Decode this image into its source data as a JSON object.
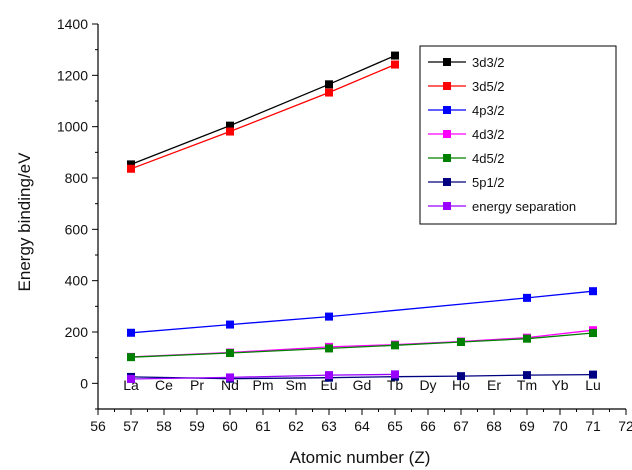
{
  "chart_data": {
    "type": "line",
    "title": "",
    "xlabel": "Atomic number (Z)",
    "ylabel": "Energy binding/eV",
    "xlim": [
      56,
      72
    ],
    "ylim": [
      -100,
      1400
    ],
    "x_ticks": [
      56,
      57,
      58,
      59,
      60,
      61,
      62,
      63,
      64,
      65,
      66,
      67,
      68,
      69,
      70,
      71,
      72
    ],
    "y_ticks": [
      0,
      200,
      400,
      600,
      800,
      1000,
      1200,
      1400
    ],
    "grid": false,
    "legend_position": "top-right",
    "element_labels": [
      {
        "z": 57,
        "label": "La"
      },
      {
        "z": 58,
        "label": "Ce"
      },
      {
        "z": 59,
        "label": "Pr"
      },
      {
        "z": 60,
        "label": "Nd"
      },
      {
        "z": 61,
        "label": "Pm"
      },
      {
        "z": 62,
        "label": "Sm"
      },
      {
        "z": 63,
        "label": "Eu"
      },
      {
        "z": 64,
        "label": "Gd"
      },
      {
        "z": 65,
        "label": "Tb"
      },
      {
        "z": 66,
        "label": "Dy"
      },
      {
        "z": 67,
        "label": "Ho"
      },
      {
        "z": 68,
        "label": "Er"
      },
      {
        "z": 69,
        "label": "Tm"
      },
      {
        "z": 70,
        "label": "Yb"
      },
      {
        "z": 71,
        "label": "Lu"
      }
    ],
    "series": [
      {
        "name": "3d3/2",
        "color": "#000000",
        "x": [
          57,
          60,
          63,
          65
        ],
        "y": [
          853,
          1004,
          1165,
          1277
        ]
      },
      {
        "name": "3d5/2",
        "color": "#ff0000",
        "x": [
          57,
          60,
          63,
          65
        ],
        "y": [
          836,
          981,
          1133,
          1242
        ]
      },
      {
        "name": "4p3/2",
        "color": "#0000ff",
        "x": [
          57,
          60,
          63,
          69,
          71
        ],
        "y": [
          197,
          229,
          260,
          333,
          359
        ]
      },
      {
        "name": "4d3/2",
        "color": "#ff00ff",
        "x": [
          57,
          60,
          63,
          65,
          67,
          69,
          71
        ],
        "y": [
          103,
          120,
          142,
          151,
          163,
          178,
          207
        ]
      },
      {
        "name": "4d5/2",
        "color": "#008000",
        "x": [
          57,
          60,
          63,
          65,
          67,
          69,
          71
        ],
        "y": [
          102,
          118,
          136,
          148,
          161,
          174,
          196
        ]
      },
      {
        "name": "5p1/2",
        "color": "#000080",
        "x": [
          57,
          60,
          63,
          65,
          67,
          69,
          71
        ],
        "y": [
          25,
          18,
          22,
          26,
          28,
          32,
          34
        ]
      },
      {
        "name": "energy separation",
        "color": "#9900ff",
        "x": [
          57,
          60,
          63,
          65
        ],
        "y": [
          17,
          23,
          32,
          35
        ]
      }
    ]
  }
}
